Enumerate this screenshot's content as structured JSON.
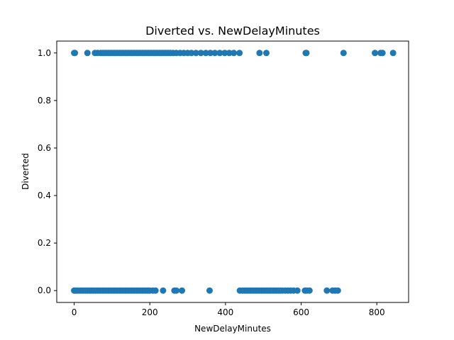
{
  "chart_data": {
    "type": "scatter",
    "title": "Diverted vs. NewDelayMinutes",
    "xlabel": "NewDelayMinutes",
    "ylabel": "Diverted",
    "xlim": [
      -46,
      884
    ],
    "ylim": [
      -0.05,
      1.05
    ],
    "x_ticks": [
      0,
      200,
      400,
      600,
      800
    ],
    "x_tick_labels": [
      "0",
      "200",
      "400",
      "600",
      "800"
    ],
    "y_ticks": [
      0.0,
      0.2,
      0.4,
      0.6,
      0.8,
      1.0
    ],
    "y_tick_labels": [
      "0.0",
      "0.2",
      "0.4",
      "0.6",
      "0.8",
      "1.0"
    ],
    "grid": false,
    "marker_color": "#1f77b4",
    "series": [
      {
        "name": "",
        "points": [
          {
            "x": 0,
            "y": 1
          },
          {
            "x": 2,
            "y": 1
          },
          {
            "x": 35,
            "y": 1
          },
          {
            "x": 55,
            "y": 1
          },
          {
            "x": 62,
            "y": 1
          },
          {
            "x": 70,
            "y": 1
          },
          {
            "x": 75,
            "y": 1
          },
          {
            "x": 80,
            "y": 1
          },
          {
            "x": 85,
            "y": 1
          },
          {
            "x": 90,
            "y": 1
          },
          {
            "x": 95,
            "y": 1
          },
          {
            "x": 100,
            "y": 1
          },
          {
            "x": 105,
            "y": 1
          },
          {
            "x": 110,
            "y": 1
          },
          {
            "x": 115,
            "y": 1
          },
          {
            "x": 120,
            "y": 1
          },
          {
            "x": 125,
            "y": 1
          },
          {
            "x": 130,
            "y": 1
          },
          {
            "x": 135,
            "y": 1
          },
          {
            "x": 140,
            "y": 1
          },
          {
            "x": 145,
            "y": 1
          },
          {
            "x": 150,
            "y": 1
          },
          {
            "x": 155,
            "y": 1
          },
          {
            "x": 160,
            "y": 1
          },
          {
            "x": 165,
            "y": 1
          },
          {
            "x": 170,
            "y": 1
          },
          {
            "x": 175,
            "y": 1
          },
          {
            "x": 180,
            "y": 1
          },
          {
            "x": 185,
            "y": 1
          },
          {
            "x": 190,
            "y": 1
          },
          {
            "x": 195,
            "y": 1
          },
          {
            "x": 200,
            "y": 1
          },
          {
            "x": 205,
            "y": 1
          },
          {
            "x": 210,
            "y": 1
          },
          {
            "x": 215,
            "y": 1
          },
          {
            "x": 220,
            "y": 1
          },
          {
            "x": 225,
            "y": 1
          },
          {
            "x": 230,
            "y": 1
          },
          {
            "x": 235,
            "y": 1
          },
          {
            "x": 240,
            "y": 1
          },
          {
            "x": 245,
            "y": 1
          },
          {
            "x": 250,
            "y": 1
          },
          {
            "x": 255,
            "y": 1
          },
          {
            "x": 262,
            "y": 1
          },
          {
            "x": 270,
            "y": 1
          },
          {
            "x": 280,
            "y": 1
          },
          {
            "x": 290,
            "y": 1
          },
          {
            "x": 300,
            "y": 1
          },
          {
            "x": 310,
            "y": 1
          },
          {
            "x": 322,
            "y": 1
          },
          {
            "x": 335,
            "y": 1
          },
          {
            "x": 348,
            "y": 1
          },
          {
            "x": 360,
            "y": 1
          },
          {
            "x": 372,
            "y": 1
          },
          {
            "x": 385,
            "y": 1
          },
          {
            "x": 398,
            "y": 1
          },
          {
            "x": 410,
            "y": 1
          },
          {
            "x": 422,
            "y": 1
          },
          {
            "x": 437,
            "y": 1
          },
          {
            "x": 490,
            "y": 1
          },
          {
            "x": 508,
            "y": 1
          },
          {
            "x": 612,
            "y": 1
          },
          {
            "x": 614,
            "y": 1
          },
          {
            "x": 712,
            "y": 1
          },
          {
            "x": 795,
            "y": 1
          },
          {
            "x": 810,
            "y": 1
          },
          {
            "x": 815,
            "y": 1
          },
          {
            "x": 843,
            "y": 1
          },
          {
            "x": 0,
            "y": 0
          },
          {
            "x": 2,
            "y": 0
          },
          {
            "x": 6,
            "y": 0
          },
          {
            "x": 10,
            "y": 0
          },
          {
            "x": 15,
            "y": 0
          },
          {
            "x": 20,
            "y": 0
          },
          {
            "x": 25,
            "y": 0
          },
          {
            "x": 30,
            "y": 0
          },
          {
            "x": 35,
            "y": 0
          },
          {
            "x": 40,
            "y": 0
          },
          {
            "x": 45,
            "y": 0
          },
          {
            "x": 50,
            "y": 0
          },
          {
            "x": 55,
            "y": 0
          },
          {
            "x": 60,
            "y": 0
          },
          {
            "x": 65,
            "y": 0
          },
          {
            "x": 70,
            "y": 0
          },
          {
            "x": 75,
            "y": 0
          },
          {
            "x": 80,
            "y": 0
          },
          {
            "x": 85,
            "y": 0
          },
          {
            "x": 90,
            "y": 0
          },
          {
            "x": 95,
            "y": 0
          },
          {
            "x": 100,
            "y": 0
          },
          {
            "x": 105,
            "y": 0
          },
          {
            "x": 110,
            "y": 0
          },
          {
            "x": 115,
            "y": 0
          },
          {
            "x": 120,
            "y": 0
          },
          {
            "x": 125,
            "y": 0
          },
          {
            "x": 130,
            "y": 0
          },
          {
            "x": 135,
            "y": 0
          },
          {
            "x": 140,
            "y": 0
          },
          {
            "x": 145,
            "y": 0
          },
          {
            "x": 150,
            "y": 0
          },
          {
            "x": 155,
            "y": 0
          },
          {
            "x": 160,
            "y": 0
          },
          {
            "x": 165,
            "y": 0
          },
          {
            "x": 170,
            "y": 0
          },
          {
            "x": 175,
            "y": 0
          },
          {
            "x": 180,
            "y": 0
          },
          {
            "x": 185,
            "y": 0
          },
          {
            "x": 190,
            "y": 0
          },
          {
            "x": 195,
            "y": 0
          },
          {
            "x": 200,
            "y": 0
          },
          {
            "x": 208,
            "y": 0
          },
          {
            "x": 215,
            "y": 0
          },
          {
            "x": 235,
            "y": 0
          },
          {
            "x": 265,
            "y": 0
          },
          {
            "x": 270,
            "y": 0
          },
          {
            "x": 285,
            "y": 0
          },
          {
            "x": 358,
            "y": 0
          },
          {
            "x": 438,
            "y": 0
          },
          {
            "x": 445,
            "y": 0
          },
          {
            "x": 450,
            "y": 0
          },
          {
            "x": 455,
            "y": 0
          },
          {
            "x": 460,
            "y": 0
          },
          {
            "x": 465,
            "y": 0
          },
          {
            "x": 470,
            "y": 0
          },
          {
            "x": 475,
            "y": 0
          },
          {
            "x": 480,
            "y": 0
          },
          {
            "x": 485,
            "y": 0
          },
          {
            "x": 490,
            "y": 0
          },
          {
            "x": 495,
            "y": 0
          },
          {
            "x": 500,
            "y": 0
          },
          {
            "x": 505,
            "y": 0
          },
          {
            "x": 510,
            "y": 0
          },
          {
            "x": 515,
            "y": 0
          },
          {
            "x": 520,
            "y": 0
          },
          {
            "x": 525,
            "y": 0
          },
          {
            "x": 530,
            "y": 0
          },
          {
            "x": 535,
            "y": 0
          },
          {
            "x": 540,
            "y": 0
          },
          {
            "x": 545,
            "y": 0
          },
          {
            "x": 550,
            "y": 0
          },
          {
            "x": 558,
            "y": 0
          },
          {
            "x": 565,
            "y": 0
          },
          {
            "x": 572,
            "y": 0
          },
          {
            "x": 580,
            "y": 0
          },
          {
            "x": 590,
            "y": 0
          },
          {
            "x": 610,
            "y": 0
          },
          {
            "x": 615,
            "y": 0
          },
          {
            "x": 622,
            "y": 0
          },
          {
            "x": 668,
            "y": 0
          },
          {
            "x": 683,
            "y": 0
          },
          {
            "x": 690,
            "y": 0
          },
          {
            "x": 697,
            "y": 0
          }
        ]
      }
    ]
  }
}
